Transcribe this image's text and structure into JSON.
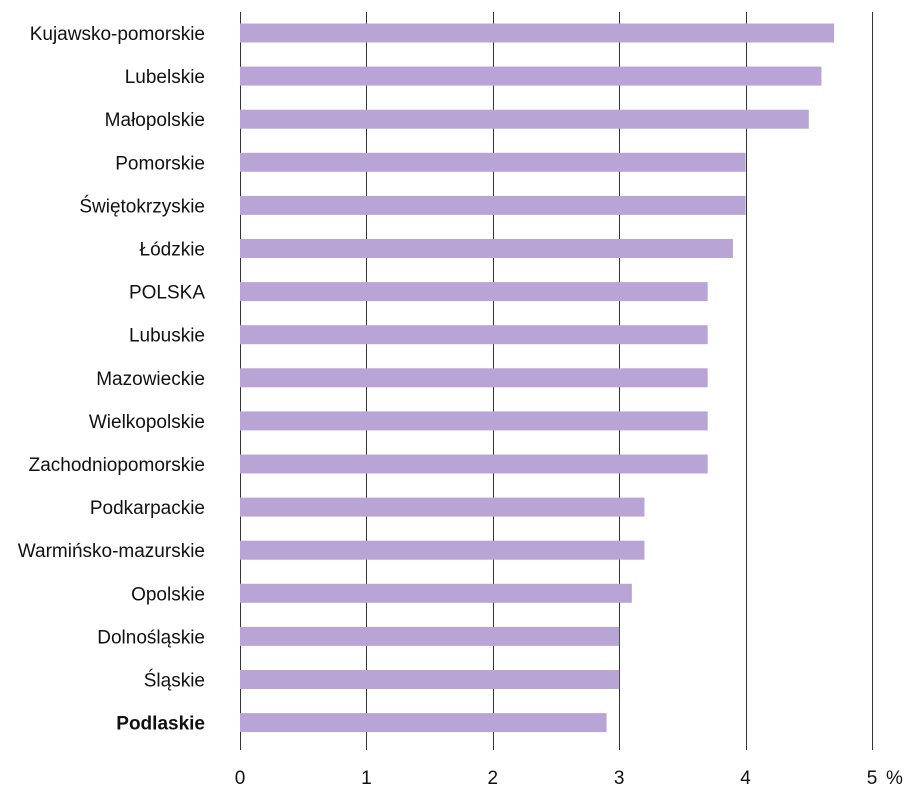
{
  "chart_data": {
    "type": "bar",
    "orientation": "horizontal",
    "categories": [
      "Kujawsko-pomorskie",
      "Lubelskie",
      "Małopolskie",
      "Pomorskie",
      "Świętokrzyskie",
      "Łódzkie",
      "POLSKA",
      "Lubuskie",
      "Mazowieckie",
      "Wielkopolskie",
      "Zachodniopomorskie",
      "Podkarpackie",
      "Warmińsko-mazurskie",
      "Opolskie",
      "Dolnośląskie",
      "Śląskie",
      "Podlaskie"
    ],
    "values": [
      4.7,
      4.6,
      4.5,
      4.0,
      4.0,
      3.9,
      3.7,
      3.7,
      3.7,
      3.7,
      3.7,
      3.2,
      3.2,
      3.1,
      3.0,
      3.0,
      2.9
    ],
    "highlighted_category": "Podlaskie",
    "xlim": [
      0,
      5
    ],
    "xticks": [
      "0",
      "1",
      "2",
      "3",
      "4",
      "5"
    ],
    "x_unit": "%",
    "grid": true,
    "bar_color": "#b8a5d5"
  }
}
